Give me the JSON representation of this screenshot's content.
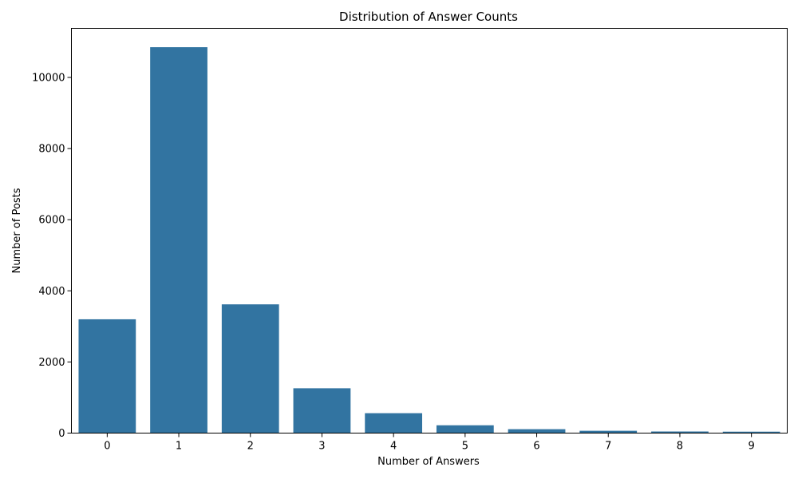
{
  "chart_data": {
    "type": "bar",
    "title": "Distribution of Answer Counts",
    "xlabel": "Number of Answers",
    "ylabel": "Number of Posts",
    "categories": [
      "0",
      "1",
      "2",
      "3",
      "4",
      "5",
      "6",
      "7",
      "8",
      "9"
    ],
    "values": [
      3200,
      10850,
      3620,
      1260,
      560,
      220,
      110,
      65,
      45,
      40
    ],
    "ylim": [
      0,
      11380
    ],
    "yticks": [
      0,
      2000,
      4000,
      6000,
      8000,
      10000
    ],
    "ytick_labels": [
      "0",
      "2000",
      "4000",
      "6000",
      "8000",
      "10000"
    ],
    "grid": false,
    "bar_color": "#3274a1"
  }
}
